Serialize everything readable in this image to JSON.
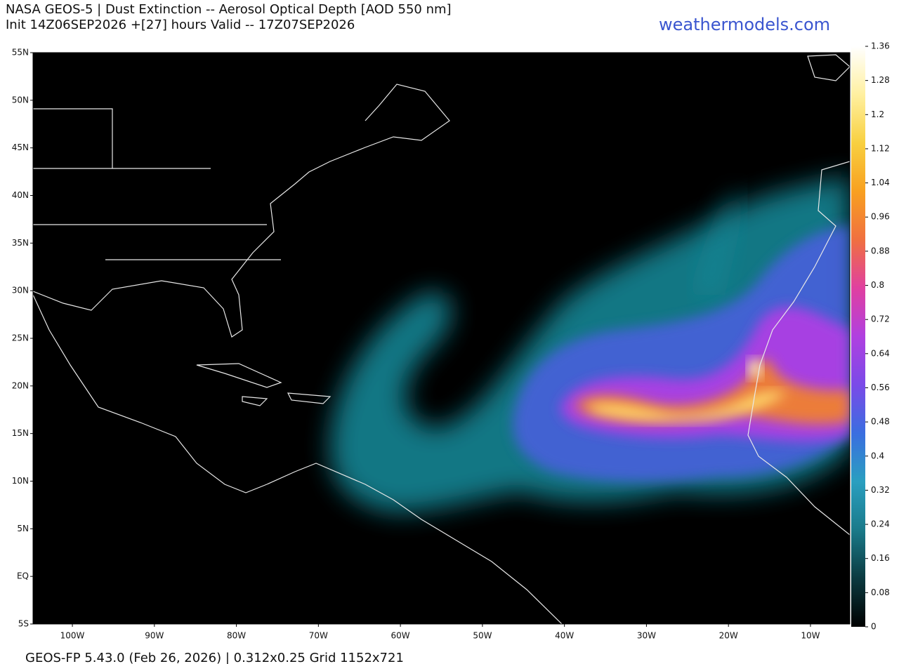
{
  "header": {
    "title": "NASA GEOS-5 | Dust Extinction -- Aerosol Optical Depth [AOD 550 nm]",
    "subtitle": "Init 14Z06SEP2026 +[27] hours Valid -- 17Z07SEP2026",
    "site": "weathermodels.com"
  },
  "map": {
    "lat_range": [
      -5,
      55
    ],
    "lon_range": [
      -104.8,
      -5.2
    ],
    "lat_ticks": [
      {
        "value": 55,
        "label": "55N"
      },
      {
        "value": 50,
        "label": "50N"
      },
      {
        "value": 45,
        "label": "45N"
      },
      {
        "value": 40,
        "label": "40N"
      },
      {
        "value": 35,
        "label": "35N"
      },
      {
        "value": 30,
        "label": "30N"
      },
      {
        "value": 25,
        "label": "25N"
      },
      {
        "value": 20,
        "label": "20N"
      },
      {
        "value": 15,
        "label": "15N"
      },
      {
        "value": 10,
        "label": "10N"
      },
      {
        "value": 5,
        "label": "5N"
      },
      {
        "value": 0,
        "label": "EQ"
      },
      {
        "value": -5,
        "label": "5S"
      }
    ],
    "lon_ticks": [
      {
        "value": -100,
        "label": "100W"
      },
      {
        "value": -90,
        "label": "90W"
      },
      {
        "value": -80,
        "label": "80W"
      },
      {
        "value": -70,
        "label": "70W"
      },
      {
        "value": -60,
        "label": "60W"
      },
      {
        "value": -50,
        "label": "50W"
      },
      {
        "value": -40,
        "label": "40W"
      },
      {
        "value": -30,
        "label": "30W"
      },
      {
        "value": -20,
        "label": "20W"
      },
      {
        "value": -10,
        "label": "10W"
      }
    ]
  },
  "colorbar": {
    "range": [
      0,
      1.36
    ],
    "ticks": [
      0,
      0.08,
      0.16,
      0.24,
      0.32,
      0.4,
      0.48,
      0.56,
      0.64,
      0.72,
      0.8,
      0.88,
      0.96,
      1.04,
      1.12,
      1.2,
      1.28,
      1.36
    ],
    "colors": [
      "#000000",
      "#0b3a40",
      "#1a7a8a",
      "#2a9fc0",
      "#3a6ee0",
      "#7a4ae8",
      "#b040e0",
      "#e040a0",
      "#f07040",
      "#f8a020",
      "#f8d040",
      "#fff0a0",
      "#ffffff"
    ]
  },
  "footer": "GEOS-FP 5.43.0 (Feb 26, 2026) | 0.312x0.25 Grid 1152x721"
}
